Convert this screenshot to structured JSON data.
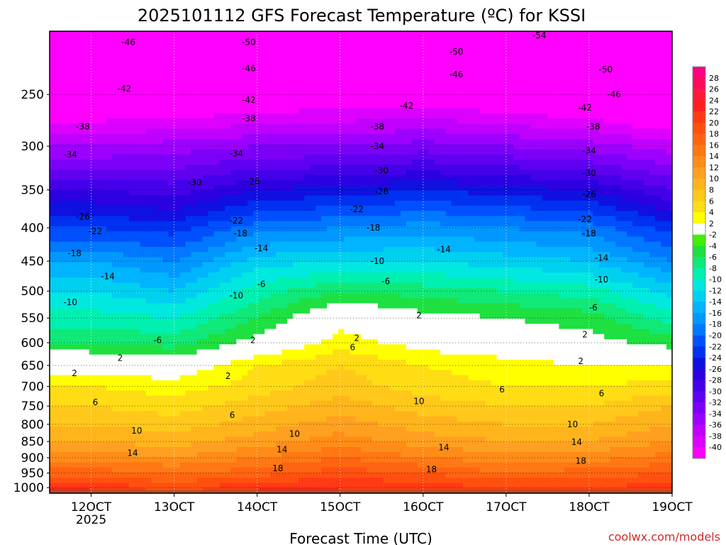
{
  "chart_data": {
    "type": "heatmap",
    "title": "2025101112 GFS Forecast Temperature (ºC) for KSSI",
    "xlabel": "Forecast Time (UTC)",
    "ylabel": "",
    "credit": "coolwx.com/models",
    "x_ticks": [
      {
        "value": 12,
        "label": "12OCT",
        "sub": "2025"
      },
      {
        "value": 13,
        "label": "13OCT"
      },
      {
        "value": 14,
        "label": "14OCT"
      },
      {
        "value": 15,
        "label": "15OCT"
      },
      {
        "value": 16,
        "label": "16OCT"
      },
      {
        "value": 17,
        "label": "17OCT"
      },
      {
        "value": 18,
        "label": "18OCT"
      },
      {
        "value": 19,
        "label": "19OCT"
      }
    ],
    "xlim": [
      11.5,
      19.0
    ],
    "y_ticks": [
      250,
      300,
      350,
      400,
      450,
      500,
      550,
      600,
      650,
      700,
      750,
      800,
      850,
      900,
      950,
      1000
    ],
    "ylim": [
      1020,
      200
    ],
    "y_scale": "log-pressure",
    "grid": true,
    "colorbar": {
      "labels": [
        28,
        26,
        24,
        22,
        20,
        18,
        16,
        14,
        12,
        10,
        8,
        6,
        4,
        2,
        -2,
        -4,
        -6,
        -8,
        -10,
        -12,
        -14,
        -16,
        -18,
        -20,
        -22,
        -24,
        -26,
        -28,
        -30,
        -32,
        -34,
        -36,
        -38,
        -40
      ],
      "colors": [
        "#ff007f",
        "#ff0a5a",
        "#ff1a3c",
        "#ff2020",
        "#ff3a14",
        "#ff5010",
        "#ff6410",
        "#ff7814",
        "#ff8c18",
        "#ffa020",
        "#ffb41c",
        "#ffc81a",
        "#ffdc14",
        "#ffff00",
        "#ffffff",
        "#40f000",
        "#1ee040",
        "#10e878",
        "#00f0b0",
        "#00e8e0",
        "#00d0f0",
        "#00b4ff",
        "#0098ff",
        "#0078ff",
        "#0050ff",
        "#0030f0",
        "#1010e0",
        "#2c00e0",
        "#4400e8",
        "#6000f0",
        "#7c00f8",
        "#9c00ff",
        "#c000ff",
        "#dc00ff",
        "#ff00ff"
      ]
    },
    "levels": [
      1000,
      950,
      900,
      850,
      800,
      750,
      700,
      650,
      600,
      550,
      500,
      450,
      400,
      350,
      300,
      250,
      200
    ],
    "x": [
      12,
      13,
      14,
      15,
      16,
      17,
      18,
      19
    ],
    "values": [
      [
        22,
        19,
        22,
        22,
        21,
        20,
        20,
        21
      ],
      [
        17,
        16,
        17,
        19,
        18,
        16,
        17,
        18
      ],
      [
        13,
        12,
        14,
        16,
        14,
        13,
        13,
        15
      ],
      [
        10,
        9,
        11,
        13,
        11,
        10,
        10,
        12
      ],
      [
        8,
        7,
        9,
        11,
        9,
        8,
        8,
        10
      ],
      [
        6,
        5,
        7,
        9,
        7,
        6,
        6,
        8
      ],
      [
        4,
        3,
        5,
        7,
        5,
        4,
        4,
        5
      ],
      [
        1,
        0,
        4,
        6,
        4,
        3,
        2,
        2
      ],
      [
        -4,
        -5,
        -1,
        3,
        1,
        0,
        -1,
        -3
      ],
      [
        -7,
        -8,
        -4,
        1,
        -1,
        -2,
        -3,
        -7
      ],
      [
        -10,
        -12,
        -7,
        -4,
        -5,
        -6,
        -7,
        -11
      ],
      [
        -14,
        -16,
        -11,
        -10,
        -10,
        -11,
        -12,
        -16
      ],
      [
        -20,
        -21,
        -17,
        -16,
        -15,
        -16,
        -17,
        -21
      ],
      [
        -26,
        -27,
        -24,
        -23,
        -22,
        -23,
        -24,
        -28
      ],
      [
        -34,
        -33,
        -32,
        -32,
        -31,
        -32,
        -33,
        -35
      ],
      [
        -42,
        -42,
        -41,
        -40,
        -40,
        -41,
        -42,
        -45
      ],
      [
        -49,
        -50,
        -49,
        -48,
        -48,
        -49,
        -50,
        -54
      ]
    ],
    "contour_labels": [
      {
        "text": "-46",
        "x": 12.45,
        "p": 208
      },
      {
        "text": "-50",
        "x": 13.9,
        "p": 208
      },
      {
        "text": "-54",
        "x": 17.4,
        "p": 203
      },
      {
        "text": "-50",
        "x": 16.4,
        "p": 215
      },
      {
        "text": "-46",
        "x": 13.9,
        "p": 228
      },
      {
        "text": "-46",
        "x": 16.4,
        "p": 233
      },
      {
        "text": "-50",
        "x": 18.2,
        "p": 229
      },
      {
        "text": "-42",
        "x": 12.4,
        "p": 245
      },
      {
        "text": "-42",
        "x": 13.9,
        "p": 255
      },
      {
        "text": "-42",
        "x": 15.8,
        "p": 260
      },
      {
        "text": "-46",
        "x": 18.3,
        "p": 250
      },
      {
        "text": "-42",
        "x": 17.95,
        "p": 262
      },
      {
        "text": "-38",
        "x": 11.9,
        "p": 280
      },
      {
        "text": "-38",
        "x": 13.9,
        "p": 272
      },
      {
        "text": "-38",
        "x": 15.45,
        "p": 280
      },
      {
        "text": "-38",
        "x": 18.05,
        "p": 280
      },
      {
        "text": "-34",
        "x": 11.75,
        "p": 309
      },
      {
        "text": "-34",
        "x": 13.75,
        "p": 308
      },
      {
        "text": "-34",
        "x": 15.45,
        "p": 300
      },
      {
        "text": "-34",
        "x": 18.0,
        "p": 305
      },
      {
        "text": "-30",
        "x": 13.25,
        "p": 341
      },
      {
        "text": "-30",
        "x": 15.5,
        "p": 327
      },
      {
        "text": "-30",
        "x": 18.0,
        "p": 330
      },
      {
        "text": "-26",
        "x": 13.95,
        "p": 340
      },
      {
        "text": "-26",
        "x": 15.5,
        "p": 352
      },
      {
        "text": "-26",
        "x": 18.0,
        "p": 355
      },
      {
        "text": "-26",
        "x": 11.9,
        "p": 385
      },
      {
        "text": "-22",
        "x": 13.75,
        "p": 390
      },
      {
        "text": "-22",
        "x": 15.2,
        "p": 375
      },
      {
        "text": "-22",
        "x": 17.95,
        "p": 388
      },
      {
        "text": "-22",
        "x": 12.05,
        "p": 405
      },
      {
        "text": "-18",
        "x": 13.8,
        "p": 408
      },
      {
        "text": "-18",
        "x": 15.4,
        "p": 400
      },
      {
        "text": "-18",
        "x": 18.0,
        "p": 408
      },
      {
        "text": "-18",
        "x": 11.8,
        "p": 438
      },
      {
        "text": "-14",
        "x": 14.05,
        "p": 430
      },
      {
        "text": "-14",
        "x": 16.25,
        "p": 432
      },
      {
        "text": "-14",
        "x": 18.15,
        "p": 445
      },
      {
        "text": "-14",
        "x": 12.2,
        "p": 475
      },
      {
        "text": "-10",
        "x": 15.45,
        "p": 450
      },
      {
        "text": "-10",
        "x": 18.15,
        "p": 480
      },
      {
        "text": "-10",
        "x": 11.75,
        "p": 520
      },
      {
        "text": "-10",
        "x": 13.75,
        "p": 508
      },
      {
        "text": "-6",
        "x": 14.05,
        "p": 488
      },
      {
        "text": "-6",
        "x": 15.55,
        "p": 483
      },
      {
        "text": "-6",
        "x": 18.05,
        "p": 530
      },
      {
        "text": "-6",
        "x": 12.8,
        "p": 595
      },
      {
        "text": "2",
        "x": 15.95,
        "p": 545
      },
      {
        "text": "2",
        "x": 13.95,
        "p": 595
      },
      {
        "text": "2",
        "x": 15.2,
        "p": 590
      },
      {
        "text": "2",
        "x": 17.95,
        "p": 583
      },
      {
        "text": "2",
        "x": 12.35,
        "p": 633
      },
      {
        "text": "2",
        "x": 11.8,
        "p": 668
      },
      {
        "text": "2",
        "x": 13.65,
        "p": 675
      },
      {
        "text": "2",
        "x": 17.9,
        "p": 640
      },
      {
        "text": "6",
        "x": 15.15,
        "p": 610
      },
      {
        "text": "6",
        "x": 16.95,
        "p": 708
      },
      {
        "text": "6",
        "x": 18.15,
        "p": 718
      },
      {
        "text": "6",
        "x": 12.05,
        "p": 740
      },
      {
        "text": "6",
        "x": 13.7,
        "p": 775
      },
      {
        "text": "10",
        "x": 15.95,
        "p": 738
      },
      {
        "text": "10",
        "x": 12.55,
        "p": 818
      },
      {
        "text": "10",
        "x": 14.45,
        "p": 828
      },
      {
        "text": "10",
        "x": 17.8,
        "p": 800
      },
      {
        "text": "14",
        "x": 12.5,
        "p": 885
      },
      {
        "text": "14",
        "x": 14.3,
        "p": 875
      },
      {
        "text": "14",
        "x": 16.25,
        "p": 868
      },
      {
        "text": "14",
        "x": 17.85,
        "p": 852
      },
      {
        "text": "18",
        "x": 14.25,
        "p": 935
      },
      {
        "text": "18",
        "x": 16.1,
        "p": 938
      },
      {
        "text": "18",
        "x": 17.9,
        "p": 910
      }
    ]
  }
}
